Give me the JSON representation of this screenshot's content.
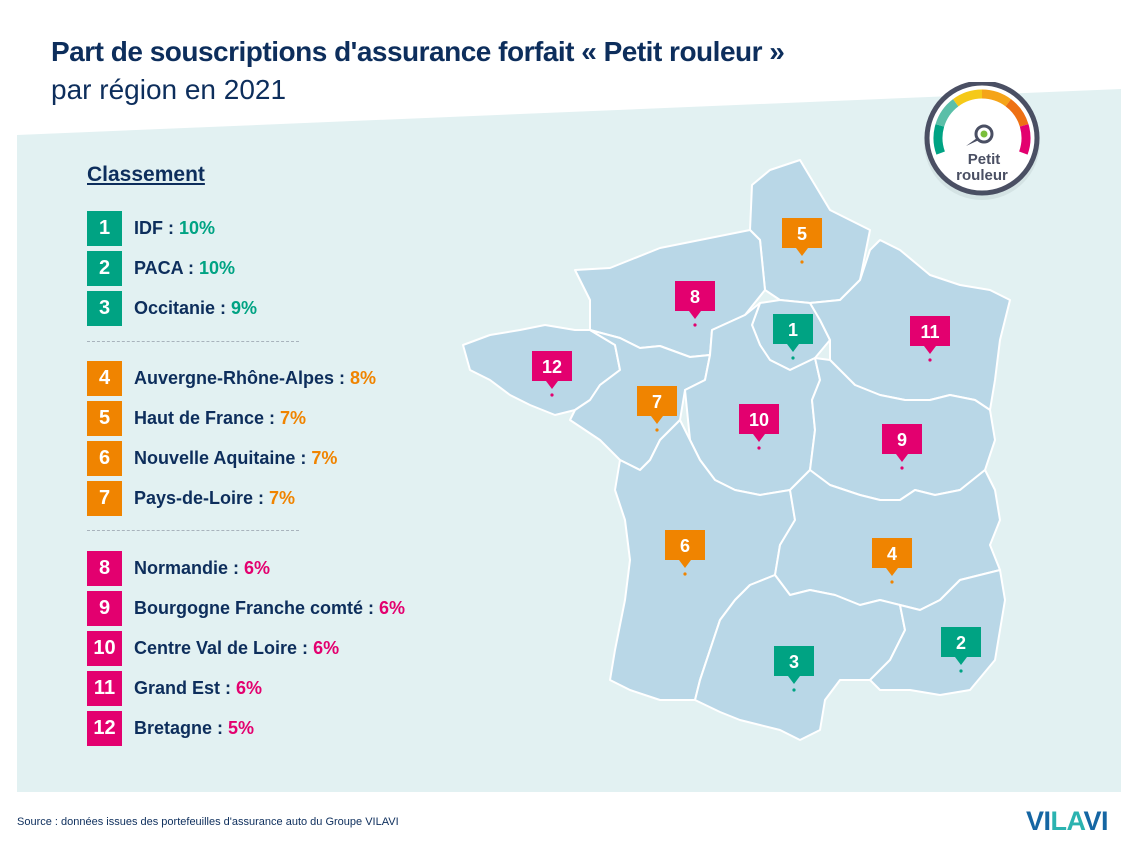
{
  "title": {
    "line1": "Part de souscriptions d'assurance forfait « Petit rouleur »",
    "line2": "par région en 2021"
  },
  "badge": {
    "icon": "speedometer-gauge-icon",
    "line1": "Petit",
    "line2": "rouleur",
    "segment_colors": [
      "#00a383",
      "#5bbfa8",
      "#f5c918",
      "#f5a418",
      "#ee7013",
      "#e3006f"
    ]
  },
  "legend": {
    "title": "Classement",
    "groups": [
      {
        "color": "#00a383",
        "items": [
          {
            "rank": "1",
            "label": "IDF : ",
            "value": "10%"
          },
          {
            "rank": "2",
            "label": "PACA : ",
            "value": "10%"
          },
          {
            "rank": "3",
            "label": "Occitanie : ",
            "value": "9%"
          }
        ]
      },
      {
        "color": "#f08400",
        "items": [
          {
            "rank": "4",
            "label": "Auvergne-Rhône-Alpes : ",
            "value": "8%"
          },
          {
            "rank": "5",
            "label": "Haut de France : ",
            "value": "7%"
          },
          {
            "rank": "6",
            "label": "Nouvelle Aquitaine : ",
            "value": "7%"
          },
          {
            "rank": "7",
            "label": "Pays-de-Loire : ",
            "value": "7%"
          }
        ]
      },
      {
        "color": "#e3006f",
        "items": [
          {
            "rank": "8",
            "label": "Normandie : ",
            "value": "6%"
          },
          {
            "rank": "9",
            "label": "Bourgogne Franche comté : ",
            "value": "6%"
          },
          {
            "rank": "10",
            "label": "Centre Val de Loire : ",
            "value": "6%"
          },
          {
            "rank": "11",
            "label": "Grand Est : ",
            "value": "6%"
          },
          {
            "rank": "12",
            "label": "Bretagne : ",
            "value": "5%"
          }
        ]
      }
    ]
  },
  "map": {
    "land_color": "#b9d7e7",
    "background_color": "#e2f1f2",
    "border_color": "#ffffff",
    "markers": [
      {
        "rank": "1",
        "region": "Île-de-France",
        "color": "#00a383"
      },
      {
        "rank": "2",
        "region": "Provence-Alpes-Côte d'Azur",
        "color": "#00a383"
      },
      {
        "rank": "3",
        "region": "Occitanie",
        "color": "#00a383"
      },
      {
        "rank": "4",
        "region": "Auvergne-Rhône-Alpes",
        "color": "#f08400"
      },
      {
        "rank": "5",
        "region": "Hauts-de-France",
        "color": "#f08400"
      },
      {
        "rank": "6",
        "region": "Nouvelle-Aquitaine",
        "color": "#f08400"
      },
      {
        "rank": "7",
        "region": "Pays de la Loire",
        "color": "#f08400"
      },
      {
        "rank": "8",
        "region": "Normandie",
        "color": "#e3006f"
      },
      {
        "rank": "9",
        "region": "Bourgogne-Franche-Comté",
        "color": "#e3006f"
      },
      {
        "rank": "10",
        "region": "Centre-Val de Loire",
        "color": "#e3006f"
      },
      {
        "rank": "11",
        "region": "Grand Est",
        "color": "#e3006f"
      },
      {
        "rank": "12",
        "region": "Bretagne",
        "color": "#e3006f"
      }
    ]
  },
  "footer": {
    "source": "Source : données issues des portefeuilles d'assurance auto du Groupe VILAVI",
    "logo_part1": "VI",
    "logo_part2": "LA",
    "logo_part3": "VI"
  }
}
